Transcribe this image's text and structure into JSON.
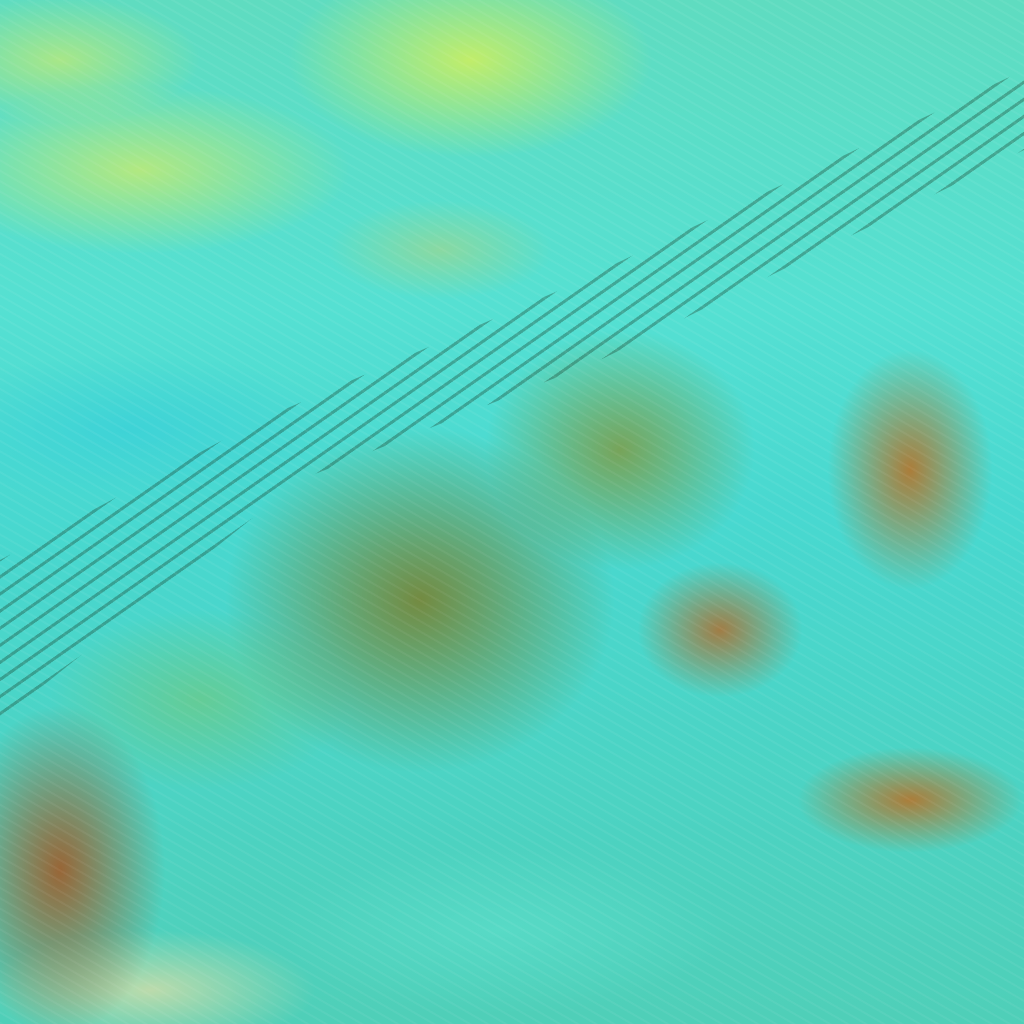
{
  "image": {
    "kind": "false-color satellite imagery",
    "colors": {
      "ocean_cloud": "#48d8d0",
      "high_cloud": "#c8eb6e",
      "land": "#b07832",
      "vegetation": "#788232"
    }
  }
}
